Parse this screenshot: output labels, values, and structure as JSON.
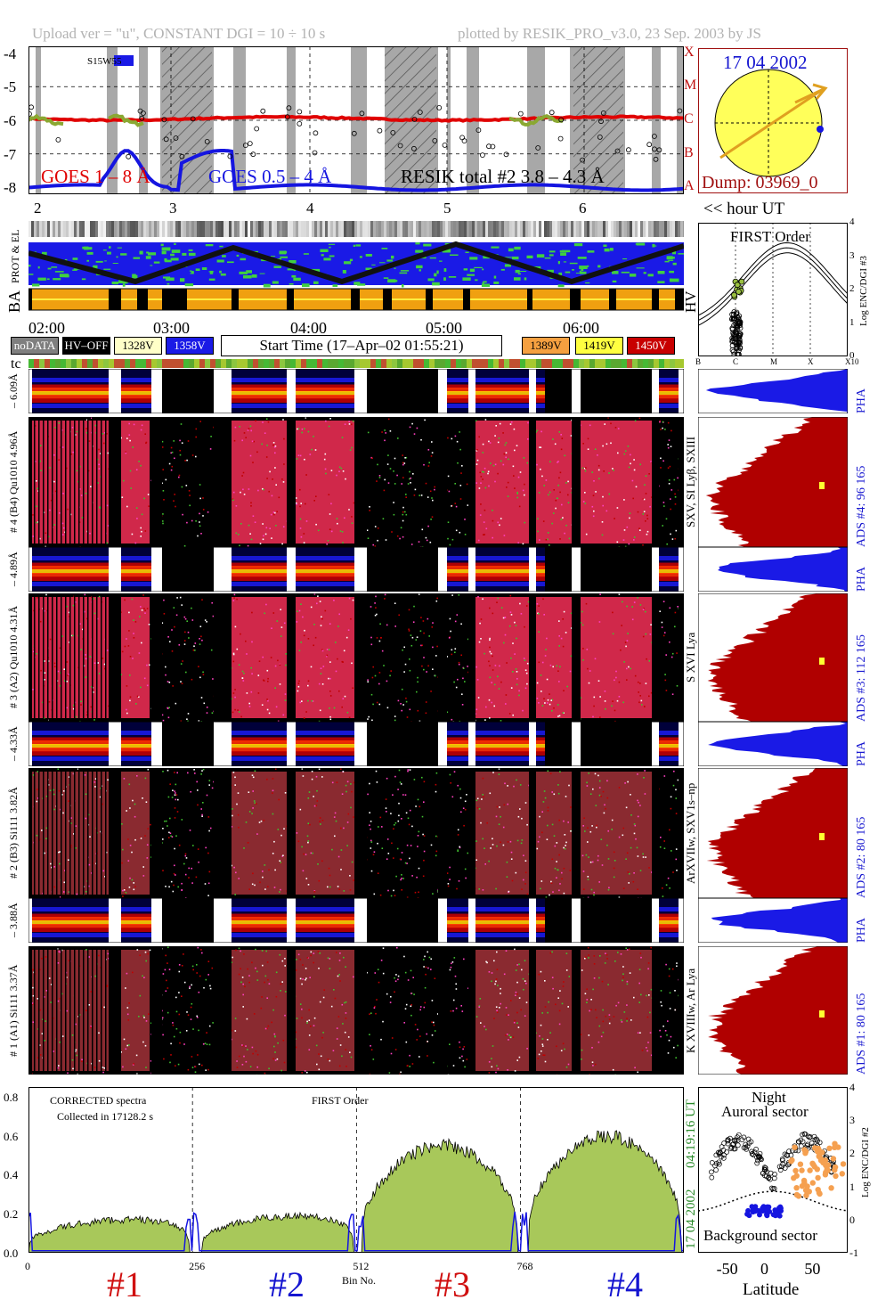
{
  "header": {
    "left": "Upload ver = \"u\", CONSTANT  DGI =  10 ÷  10 s",
    "right": "plotted by RESIK_PRO_v3.0, 23 Sep. 2003 by JS"
  },
  "goes_panel": {
    "y_ticks": [
      "-4",
      "-5",
      "-6",
      "-7",
      "-8"
    ],
    "class_letters": [
      "X",
      "M",
      "C",
      "B",
      "A"
    ],
    "tag": "S15W55",
    "legend": [
      {
        "text": "GOES 1 – 8 Å",
        "color": "#e00000"
      },
      {
        "text": "GOES 0.5 – 4 Å",
        "color": "#1515e0"
      },
      {
        "text": "RESIK total #2 3.8 – 4.3 Å",
        "color": "#000000"
      }
    ],
    "hour_ticks": [
      "2",
      "3",
      "4",
      "5",
      "6"
    ],
    "hour_label": "<< hour UT"
  },
  "sun_panel": {
    "date": "17 04 2002",
    "dump": "Dump: 03969_0"
  },
  "strip_labels": {
    "prot": "PROT & EL",
    "ba": "BA",
    "hv": "HV"
  },
  "time_axis": {
    "ticks": [
      "02:00",
      "03:00",
      "04:00",
      "05:00",
      "06:00"
    ]
  },
  "hv_legend": [
    {
      "text": "noDATA",
      "bg": "#7f7f7f",
      "fg": "#ffffff"
    },
    {
      "text": "HV–OFF",
      "bg": "#000000",
      "fg": "#ffffff"
    },
    {
      "text": "1328V",
      "bg": "#ffffc8",
      "fg": "#000000"
    },
    {
      "text": "1358V",
      "bg": "#1a1ae6",
      "fg": "#ffffff"
    },
    {
      "text": "1389V",
      "bg": "#f5a040",
      "fg": "#000000"
    },
    {
      "text": "1419V",
      "bg": "#ffff40",
      "fg": "#000000"
    },
    {
      "text": "1450V",
      "bg": "#c80000",
      "fg": "#ffffff"
    }
  ],
  "start_time": "Start Time (17–Apr–02 01:55:21)",
  "tc_label": "tc",
  "first_order_panel": {
    "title": "FIRST Order",
    "ylabel": "Log ENC/DGI #3",
    "y_ticks": [
      "4",
      "3",
      "2",
      "1",
      "0"
    ],
    "x_ticks": [
      "B",
      "C",
      "M",
      "X",
      "X10"
    ]
  },
  "channels": [
    {
      "small_label": "– 6.09Å",
      "big_label": "# 4 (B4) Qu1010 4.96Å",
      "right_label": "SXV, SI Lyβ, SXIII",
      "ads": "ADS #4:   96 165",
      "pha": "PHA"
    },
    {
      "small_label": "– 4.89Å",
      "big_label": "# 3 (A2) Qu1010  4.31Å",
      "right_label": "S XVI Lya",
      "ads": "ADS #3:   112 165",
      "pha": "PHA"
    },
    {
      "small_label": "– 4.33Å",
      "big_label": "# 2 (B3) Si111  3.82Å",
      "right_label": "ArXVIIw, SXV1s–np",
      "ads": "ADS #2:   80 165",
      "pha": "PHA"
    },
    {
      "small_label": "– 3.88Å",
      "big_label": "# 1 (A1) Si111  3.37Å",
      "right_label": "K XVIIIw, Ar Lya",
      "ads": "ADS #1:   80 165",
      "pha": "PHA"
    }
  ],
  "spectrum_panel": {
    "note1": "CORRECTED spectra",
    "note2": "Collected in 17128.2 s",
    "note3": "FIRST Order",
    "y_ticks": [
      "0.8",
      "0.6",
      "0.4",
      "0.2",
      "0.0"
    ],
    "x_ticks": [
      "0",
      "256",
      "512",
      "768"
    ],
    "xlabel": "Bin No.",
    "date_stamp": "17 04 2002",
    "time_stamp": "04:19:16 UT",
    "channel_marks": [
      {
        "text": "#1",
        "color": "#d01010"
      },
      {
        "text": "#2",
        "color": "#1515d0"
      },
      {
        "text": "#3",
        "color": "#d01010"
      },
      {
        "text": "#4",
        "color": "#1515d0"
      }
    ]
  },
  "latitude_panel": {
    "title1": "Night",
    "title2": "Auroral sector",
    "bottom": "Background sector",
    "ylabel": "Log ENC/DGI #2",
    "y_ticks": [
      "4",
      "3",
      "2",
      "1",
      "0",
      "-1"
    ],
    "x_ticks": [
      "-50",
      "0",
      "50"
    ],
    "xlabel": "Latitude"
  },
  "chart_data": {
    "type": "area",
    "x_range": [
      0,
      1023
    ],
    "ylim": [
      0,
      0.85
    ],
    "segments": [
      {
        "name": "#1",
        "x_start": 0,
        "x_end": 256,
        "level": 0.18
      },
      {
        "name": "#2",
        "x_start": 270,
        "x_end": 512,
        "level": 0.2
      },
      {
        "name": "#3",
        "x_start": 520,
        "x_end": 768,
        "level": 0.48
      },
      {
        "name": "#4",
        "x_start": 780,
        "x_end": 1023,
        "level": 0.52
      }
    ],
    "goes_log_flux_range": [
      -8.2,
      -3.8
    ]
  }
}
